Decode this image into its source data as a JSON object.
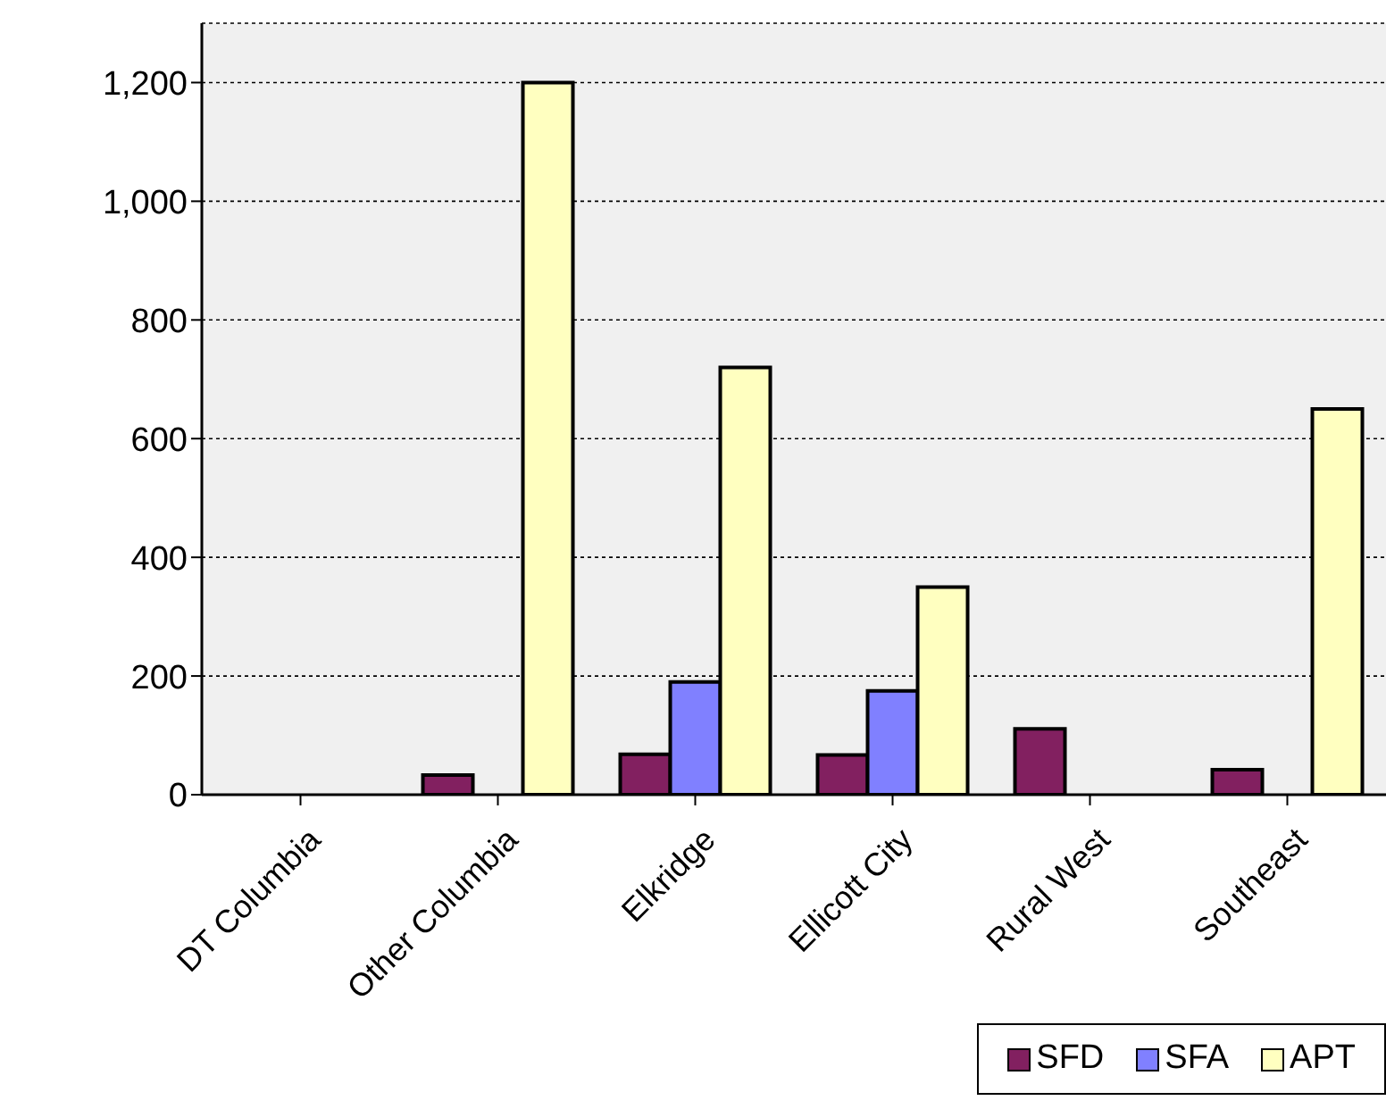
{
  "chart_data": {
    "type": "bar",
    "categories": [
      "DT Columbia",
      "Other Columbia",
      "Elkridge",
      "Ellicott City",
      "Rural West",
      "Southeast"
    ],
    "series": [
      {
        "name": "SFD",
        "color": "#822060",
        "values": [
          0,
          33,
          68,
          67,
          111,
          42
        ]
      },
      {
        "name": "SFA",
        "color": "#8080ff",
        "values": [
          0,
          0,
          190,
          175,
          0,
          0
        ]
      },
      {
        "name": "APT",
        "color": "#ffffc0",
        "values": [
          0,
          1200,
          720,
          350,
          0,
          650
        ]
      }
    ],
    "ylim": [
      0,
      1300
    ],
    "yticks": [
      0,
      200,
      400,
      600,
      800,
      {
        "value": 1000,
        "label": "1,000"
      },
      {
        "value": 1200,
        "label": "1,200"
      }
    ],
    "grid": "y",
    "legend": "bottom right"
  }
}
